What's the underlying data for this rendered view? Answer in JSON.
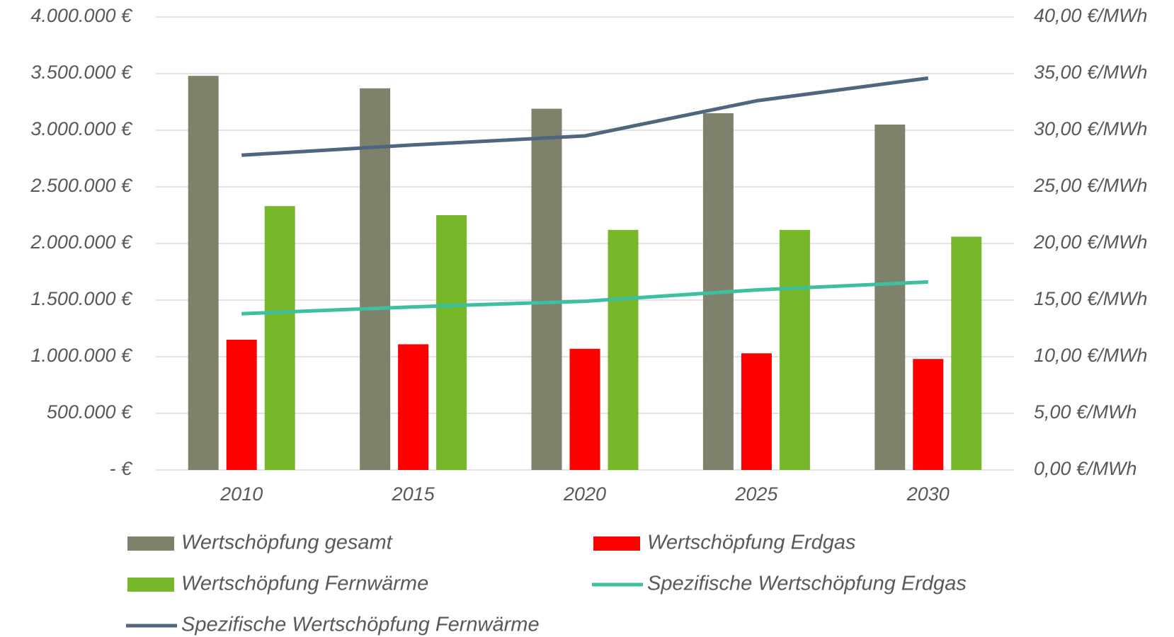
{
  "chart_data": {
    "type": "bar",
    "categories": [
      "2010",
      "2015",
      "2020",
      "2025",
      "2030"
    ],
    "series": [
      {
        "name": "Wertschöpfung gesamt",
        "color": "#7f826a",
        "type": "bar",
        "values": [
          3480000,
          3370000,
          3190000,
          3150000,
          3050000
        ]
      },
      {
        "name": "Wertschöpfung Erdgas",
        "color": "#ff0000",
        "type": "bar",
        "values": [
          1150000,
          1110000,
          1070000,
          1030000,
          980000
        ]
      },
      {
        "name": "Wertschöpfung Fernwärme",
        "color": "#76b82a",
        "type": "bar",
        "values": [
          2330000,
          2250000,
          2120000,
          2120000,
          2060000
        ]
      },
      {
        "name": "Spezifische Wertschöpfung Erdgas",
        "color": "#3cc0a0",
        "type": "line",
        "axis": "y2",
        "values": [
          13.8,
          14.4,
          14.9,
          15.9,
          16.6
        ]
      },
      {
        "name": "Spezifische Wertschöpfung Fernwärme",
        "color": "#50657f",
        "type": "line",
        "axis": "y2",
        "values": [
          27.8,
          28.7,
          29.5,
          32.6,
          34.6
        ]
      }
    ],
    "ylim": [
      0,
      4000000
    ],
    "yticks": [
      {
        "value": 0,
        "label": "-   €"
      },
      {
        "value": 500000,
        "label": "500.000 €"
      },
      {
        "value": 1000000,
        "label": "1.000.000 €"
      },
      {
        "value": 1500000,
        "label": "1.500.000 €"
      },
      {
        "value": 2000000,
        "label": "2.000.000 €"
      },
      {
        "value": 2500000,
        "label": "2.500.000 €"
      },
      {
        "value": 3000000,
        "label": "3.000.000 €"
      },
      {
        "value": 3500000,
        "label": "3.500.000 €"
      },
      {
        "value": 4000000,
        "label": "4.000.000 €"
      }
    ],
    "y2lim": [
      0,
      40
    ],
    "y2ticks": [
      {
        "value": 0,
        "label": "0,00 €/MWh"
      },
      {
        "value": 5,
        "label": "5,00 €/MWh"
      },
      {
        "value": 10,
        "label": "10,00 €/MWh"
      },
      {
        "value": 15,
        "label": "15,00 €/MWh"
      },
      {
        "value": 20,
        "label": "20,00 €/MWh"
      },
      {
        "value": 25,
        "label": "25,00 €/MWh"
      },
      {
        "value": 30,
        "label": "30,00 €/MWh"
      },
      {
        "value": 35,
        "label": "35,00 €/MWh"
      },
      {
        "value": 40,
        "label": "40,00 €/MWh"
      }
    ],
    "grid": true,
    "legend": "bottom"
  }
}
